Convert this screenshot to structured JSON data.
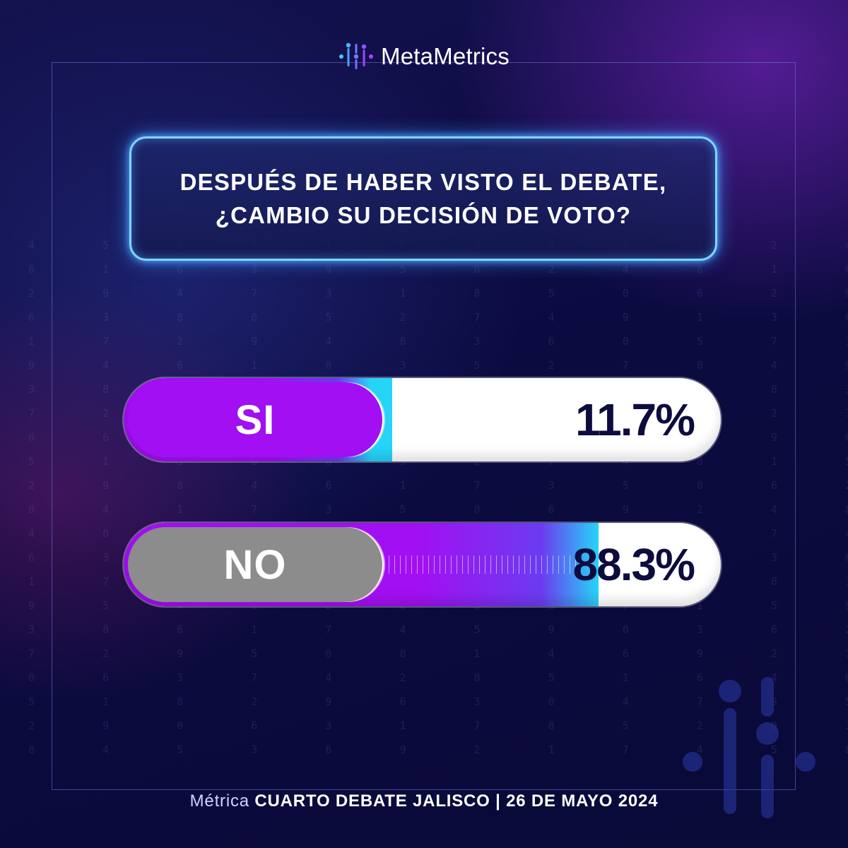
{
  "brand": {
    "prefix": "Meta",
    "suffix": "Metrics"
  },
  "question": {
    "line1": "DESPUÉS DE HABER VISTO EL DEBATE,",
    "line2": "¿CAMBIO SU DECISIÓN DE VOTO?"
  },
  "chart_data": {
    "type": "bar",
    "title": "DESPUÉS DE HABER VISTO EL DEBATE, ¿CAMBIO SU DECISIÓN DE VOTO?",
    "categories": [
      "SI",
      "NO"
    ],
    "values": [
      11.7,
      88.3
    ],
    "value_labels": [
      "11.7%",
      "88.3%"
    ],
    "unit": "%",
    "ylim": [
      0,
      100
    ]
  },
  "footer": {
    "prefix": "Métrica",
    "event": "CUARTO DEBATE JALISCO",
    "separator": "|",
    "date": "26 DE MAYO 2024"
  },
  "colors": {
    "accent": "#a10ff2",
    "cyan": "#26d4f8",
    "no_pill": "#8c8c8c",
    "text_dark": "#0c0c3e",
    "background": "#0b0a3c"
  }
}
